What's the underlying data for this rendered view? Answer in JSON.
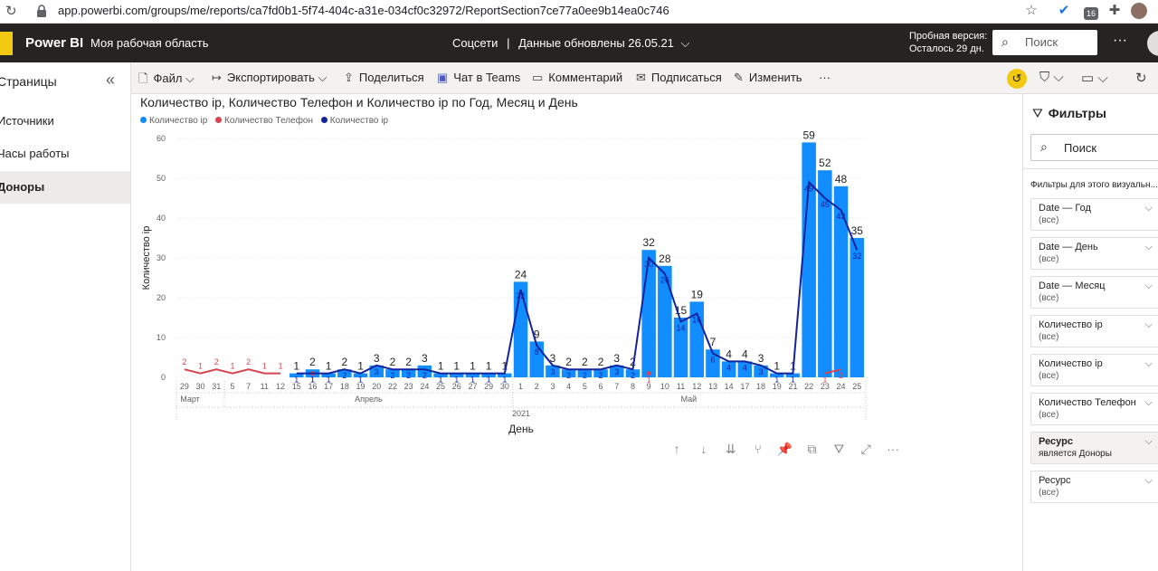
{
  "browser": {
    "url": "app.powerbi.com/groups/me/reports/ca7fd0b1-5f74-404c-a31e-034cf0c32972/ReportSection7ce77a0ee9b14ea0c746",
    "extension_badge": "16"
  },
  "header": {
    "brand": "Power BI",
    "workspace": "Моя рабочая область",
    "report_name": "Соцсети",
    "separator": "|",
    "data_updated": "Данные обновлены 26.05.21",
    "trial_line1": "Пробная версия:",
    "trial_line2": "Осталось 29 дн.",
    "search_placeholder": "Поиск",
    "more": "···"
  },
  "pages": {
    "title": "Страницы",
    "items": [
      {
        "label": "Источники",
        "active": false
      },
      {
        "label": "Часы работы",
        "active": false
      },
      {
        "label": "Доноры",
        "active": true
      }
    ]
  },
  "toolbar": {
    "file": "Файл",
    "export": "Экспортировать",
    "share": "Поделиться",
    "teams": "Чат в Teams",
    "comment": "Комментарий",
    "subscribe": "Подписаться",
    "edit": "Изменить",
    "more": "···"
  },
  "filters": {
    "title": "Фильтры",
    "search_placeholder": "Поиск",
    "section": "Фильтры для этого визуальн...",
    "cards": [
      {
        "name": "Date — Год",
        "value": "(все)",
        "applied": false
      },
      {
        "name": "Date — День",
        "value": "(все)",
        "applied": false
      },
      {
        "name": "Date — Месяц",
        "value": "(все)",
        "applied": false
      },
      {
        "name": "Количество ip",
        "value": "(все)",
        "applied": false
      },
      {
        "name": "Количество ip",
        "value": "(все)",
        "applied": false
      },
      {
        "name": "Количество Телефон",
        "value": "(все)",
        "applied": false
      },
      {
        "name": "Ресурс",
        "value": "является Доноры",
        "applied": true
      },
      {
        "name": "Ресурс",
        "value": "(все)",
        "applied": false
      }
    ]
  },
  "chart_data": {
    "type": "bar",
    "title": "Количество ip, Количество Телефон и Количество ip по Год, Месяц и День",
    "xlabel": "День",
    "ylabel": "Количество ip",
    "ylim": [
      0,
      60
    ],
    "yticks": [
      0,
      10,
      20,
      30,
      40,
      50,
      60
    ],
    "grid": true,
    "legend_position": "top-left",
    "year": "2021",
    "months": [
      {
        "label": "Март",
        "days": [
          "29",
          "30",
          "31"
        ]
      },
      {
        "label": "Апрель",
        "days": [
          "5",
          "7",
          "11",
          "12",
          "15",
          "16",
          "17",
          "18",
          "19",
          "20",
          "22",
          "23",
          "24",
          "25",
          "26",
          "27",
          "29",
          "30"
        ]
      },
      {
        "label": "Май",
        "days": [
          "1",
          "2",
          "3",
          "4",
          "5",
          "6",
          "7",
          "8",
          "9",
          "10",
          "11",
          "12",
          "13",
          "14",
          "17",
          "18",
          "19",
          "21",
          "22",
          "23",
          "24",
          "25"
        ]
      }
    ],
    "series": [
      {
        "name": "Количество ip",
        "kind": "bar",
        "color": "#118dff",
        "values": [
          null,
          null,
          null,
          null,
          null,
          null,
          null,
          1,
          2,
          1,
          2,
          1,
          3,
          2,
          2,
          3,
          1,
          1,
          1,
          1,
          1,
          24,
          9,
          3,
          2,
          2,
          2,
          3,
          2,
          32,
          28,
          15,
          19,
          7,
          4,
          4,
          3,
          1,
          1,
          59,
          52,
          48,
          35
        ]
      },
      {
        "name": "Количество Телефон",
        "kind": "line",
        "color": "#d64550",
        "values": [
          2,
          1,
          2,
          1,
          2,
          1,
          1,
          null,
          1,
          null,
          null,
          null,
          null,
          null,
          null,
          null,
          null,
          null,
          null,
          null,
          null,
          null,
          null,
          null,
          null,
          null,
          null,
          null,
          null,
          1,
          null,
          null,
          null,
          null,
          null,
          null,
          null,
          null,
          null,
          null,
          1,
          2,
          null
        ]
      },
      {
        "name": "Количество ip",
        "kind": "line",
        "color": "#12239e",
        "values": [
          null,
          null,
          null,
          null,
          null,
          null,
          null,
          1,
          1,
          1,
          2,
          1,
          3,
          2,
          2,
          2,
          1,
          1,
          1,
          1,
          1,
          22,
          8,
          3,
          2,
          2,
          2,
          3,
          2,
          30,
          26,
          14,
          16,
          6,
          4,
          4,
          3,
          1,
          1,
          49,
          45,
          42,
          32
        ]
      }
    ]
  }
}
